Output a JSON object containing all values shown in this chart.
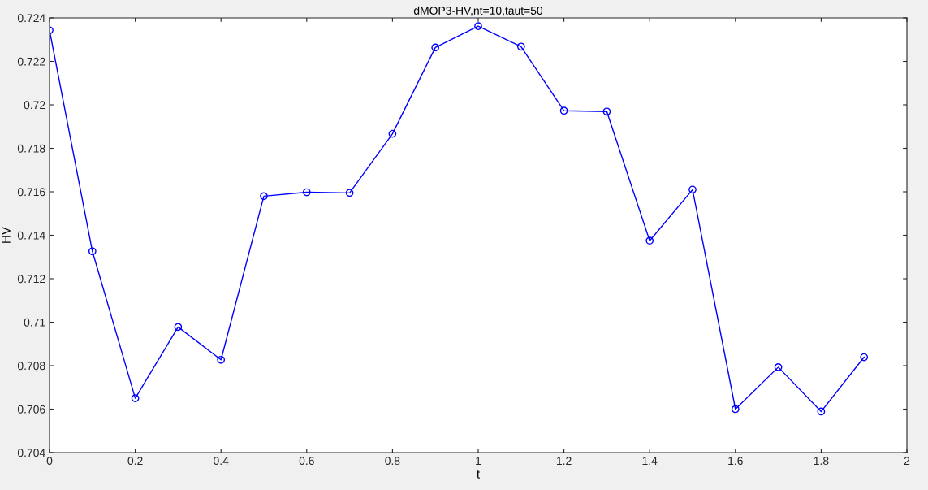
{
  "chart_data": {
    "type": "line",
    "title": "dMOP3-HV,nt=10,taut=50",
    "xlabel": "t",
    "ylabel": "HV",
    "x": [
      0,
      0.1,
      0.2,
      0.3,
      0.4,
      0.5,
      0.6,
      0.7,
      0.8,
      0.9,
      1,
      1.1,
      1.2,
      1.3,
      1.4,
      1.5,
      1.6,
      1.7,
      1.8,
      1.9
    ],
    "series": [
      {
        "color": "#0000ff",
        "values": [
          0.72343,
          0.71326,
          0.7065,
          0.70978,
          0.70827,
          0.7158,
          0.71598,
          0.71595,
          0.71867,
          0.72264,
          0.72362,
          0.72268,
          0.71973,
          0.71969,
          0.71375,
          0.7161,
          0.706,
          0.70793,
          0.70589,
          0.70839
        ]
      }
    ],
    "xlim": [
      0,
      2
    ],
    "xticks": [
      0,
      0.2,
      0.4,
      0.6,
      0.8,
      1,
      1.2,
      1.4,
      1.6,
      1.8,
      2
    ],
    "ylim": [
      0.704,
      0.724
    ],
    "yticks": [
      0.704,
      0.706,
      0.708,
      0.71,
      0.712,
      0.714,
      0.716,
      0.718,
      0.72,
      0.722,
      0.724
    ],
    "marker": "circle",
    "line_style": "solid",
    "grid": false,
    "legend": false
  }
}
